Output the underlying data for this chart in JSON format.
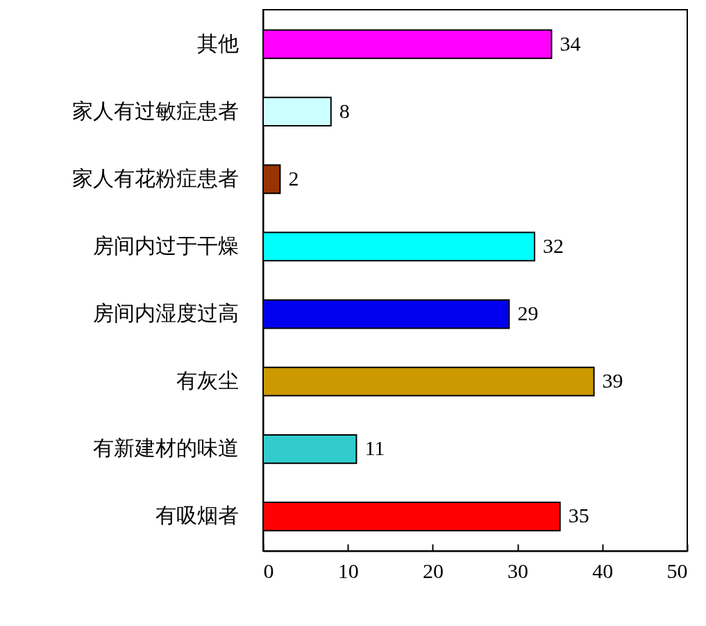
{
  "chart_data": {
    "type": "bar",
    "orientation": "horizontal",
    "categories": [
      "其他",
      "家人有过敏症患者",
      "家人有花粉症患者",
      "房间内过于干燥",
      "房间内湿度过高",
      "有灰尘",
      "有新建材的味道",
      "有吸烟者"
    ],
    "values": [
      34,
      8,
      2,
      32,
      29,
      39,
      11,
      35
    ],
    "colors": [
      "#ff00ff",
      "#ccffff",
      "#993300",
      "#00ffff",
      "#0000ee",
      "#cc9900",
      "#33cccc",
      "#ff0000"
    ],
    "xlim": [
      0,
      50
    ],
    "xticks": [
      0,
      10,
      20,
      30,
      40,
      50
    ],
    "data_labels": true,
    "grid": false,
    "legend": false
  }
}
